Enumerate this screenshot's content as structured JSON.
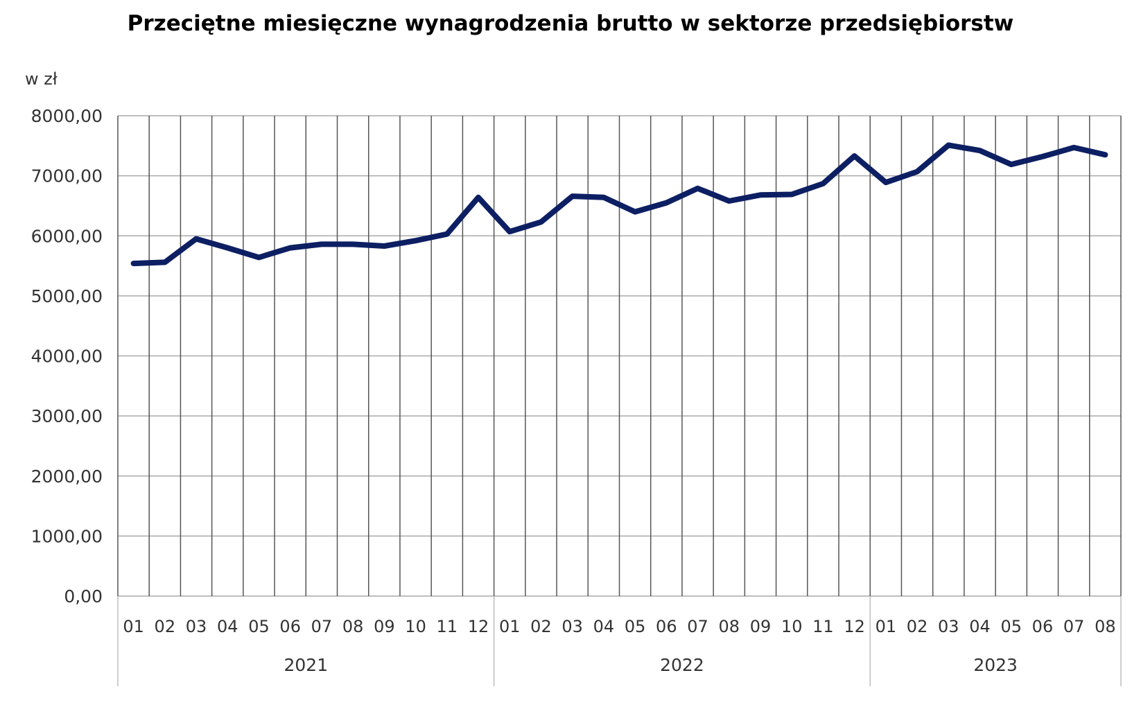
{
  "chart_data": {
    "type": "line",
    "title": "Przeciętne miesięczne wynagrodzenia brutto w sektorze przedsiębiorstw",
    "ylabel": "w zł",
    "xlabel": "",
    "ylim": [
      0,
      8000
    ],
    "yticks": [
      {
        "value": 0,
        "label": "0,00"
      },
      {
        "value": 1000,
        "label": "1000,00"
      },
      {
        "value": 2000,
        "label": "2000,00"
      },
      {
        "value": 3000,
        "label": "3000,00"
      },
      {
        "value": 4000,
        "label": "4000,00"
      },
      {
        "value": 5000,
        "label": "5000,00"
      },
      {
        "value": 6000,
        "label": "6000,00"
      },
      {
        "value": 7000,
        "label": "7000,00"
      },
      {
        "value": 8000,
        "label": "8000,00"
      }
    ],
    "grid": true,
    "line_color": "#0d1f63",
    "groups": [
      {
        "label": "2021",
        "months": [
          "01",
          "02",
          "03",
          "04",
          "05",
          "06",
          "07",
          "08",
          "09",
          "10",
          "11",
          "12"
        ]
      },
      {
        "label": "2022",
        "months": [
          "01",
          "02",
          "03",
          "04",
          "05",
          "06",
          "07",
          "08",
          "09",
          "10",
          "11",
          "12"
        ]
      },
      {
        "label": "2023",
        "months": [
          "01",
          "02",
          "03",
          "04",
          "05",
          "06",
          "07",
          "08"
        ]
      }
    ],
    "series": [
      {
        "values": [
          5540,
          5560,
          5950,
          5800,
          5640,
          5800,
          5860,
          5860,
          5830,
          5920,
          6030,
          6640,
          6070,
          6230,
          6660,
          6640,
          6400,
          6550,
          6790,
          6580,
          6680,
          6690,
          6870,
          7330,
          6890,
          7070,
          7510,
          7420,
          7190,
          7320,
          7470,
          7350
        ]
      }
    ]
  }
}
